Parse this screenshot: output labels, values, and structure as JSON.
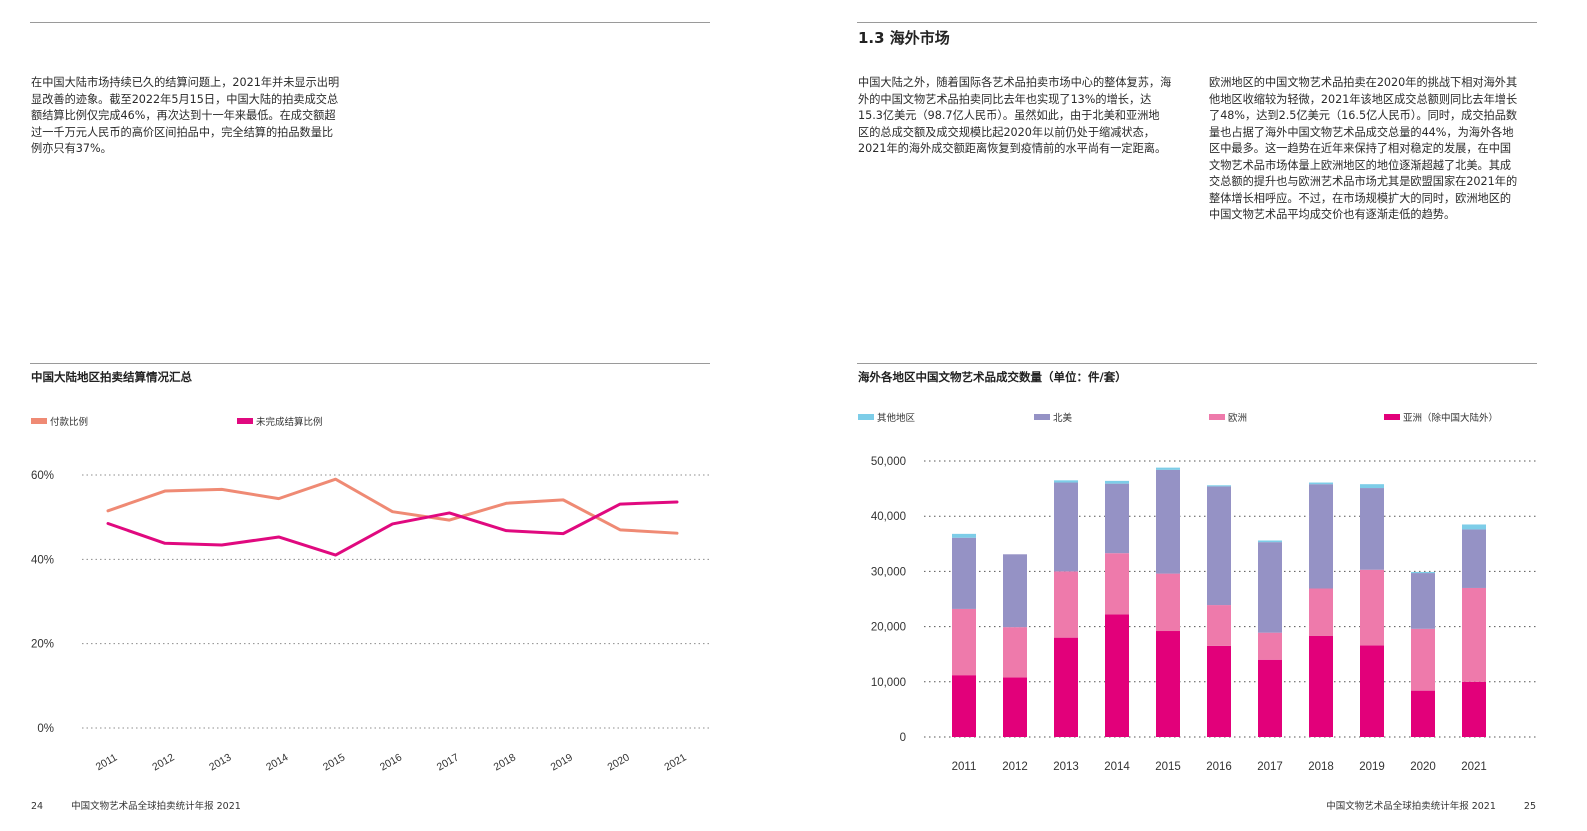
{
  "left_page": {
    "intro_lines": [
      "在中国大陆市场持续已久的结算问题上，2021年并未显示出明",
      "显改善的迹象。截至2022年5月15日，中国大陆的拍卖成交总",
      "额结算比例仅完成46%，再次达到十一年来最低。在成交额超",
      "过一千万元人民币的高价区间拍品中，完全结算的拍品数量比",
      "例亦只有37%。"
    ],
    "page_number": "24",
    "footer_text": "中国文物艺术品全球拍卖统计年报 2021"
  },
  "right_page": {
    "section_title": "1.3 海外市场",
    "col1_lines": [
      "中国大陆之外，随着国际各艺术品拍卖市场中心的整体复苏，海",
      "外的中国文物艺术品拍卖同比去年也实现了13%的增长，达",
      "15.3亿美元（98.7亿人民币）。虽然如此，由于北美和亚洲地",
      "区的总成交额及成交规模比起2020年以前仍处于缩减状态，",
      "2021年的海外成交额距离恢复到疫情前的水平尚有一定距离。"
    ],
    "col2_lines": [
      "欧洲地区的中国文物艺术品拍卖在2020年的挑战下相对海外其",
      "他地区收缩较为轻微，2021年该地区成交总额则同比去年增长",
      "了48%，达到2.5亿美元（16.5亿人民币）。同时，成交拍品数",
      "量也占据了海外中国文物艺术品成交总量的44%，为海外各地",
      "区中最多。这一趋势在近年来保持了相对稳定的发展，在中国",
      "文物艺术品市场体量上欧洲地区的地位逐渐超越了北美。其成",
      "交总额的提升也与欧洲艺术品市场尤其是欧盟国家在2021年的",
      "整体增长相呼应。不过，在市场规模扩大的同时，欧洲地区的",
      "中国文物艺术品平均成交价也有逐渐走低的趋势。"
    ],
    "page_number": "25",
    "footer_text": "中国文物艺术品全球拍卖统计年报 2021"
  },
  "chart_data": [
    {
      "type": "line",
      "title": "中国大陆地区拍卖结算情况汇总",
      "categories": [
        "2011",
        "2012",
        "2013",
        "2014",
        "2015",
        "2016",
        "2017",
        "2018",
        "2019",
        "2020",
        "2021"
      ],
      "series": [
        {
          "name": "付款比例",
          "color": "#ef8a74",
          "values": [
            51.5,
            56.2,
            56.6,
            54.4,
            59.0,
            51.3,
            49.3,
            53.3,
            54.1,
            47.0,
            46.2
          ]
        },
        {
          "name": "未完成结算比例",
          "color": "#e0097f",
          "values": [
            48.5,
            43.8,
            43.4,
            45.3,
            41.0,
            48.4,
            51.0,
            46.8,
            46.1,
            53.1,
            53.6
          ]
        }
      ],
      "yticks": [
        "0%",
        "20%",
        "40%",
        "60%"
      ],
      "ylim": [
        0,
        60
      ],
      "grid": "dotted",
      "legend": "top-left"
    },
    {
      "type": "bar",
      "stacked": true,
      "title": "海外各地区中国文物艺术品成交数量（单位：件/套）",
      "categories": [
        "2011",
        "2012",
        "2013",
        "2014",
        "2015",
        "2016",
        "2017",
        "2018",
        "2019",
        "2020",
        "2021"
      ],
      "series": [
        {
          "name": "亚洲（除中国大陆外）",
          "color": "#e2007a",
          "values": [
            11200,
            10800,
            18000,
            22200,
            19200,
            16500,
            14000,
            18300,
            16600,
            8400,
            10000
          ]
        },
        {
          "name": "欧洲",
          "color": "#ee7aab",
          "values": [
            12000,
            9100,
            12000,
            11100,
            10400,
            7400,
            4900,
            8600,
            13700,
            11200,
            17000
          ]
        },
        {
          "name": "北美",
          "color": "#9592c5",
          "values": [
            12900,
            13200,
            16100,
            12600,
            18800,
            21500,
            16400,
            18900,
            14800,
            10100,
            10600
          ]
        },
        {
          "name": "其他地区",
          "color": "#7dcde8",
          "values": [
            700,
            0,
            400,
            500,
            400,
            200,
            300,
            300,
            700,
            200,
            900
          ]
        }
      ],
      "yticks": [
        "0",
        "10,000",
        "20,000",
        "30,000",
        "40,000",
        "50,000"
      ],
      "ylim": [
        0,
        50000
      ],
      "grid": "dotted",
      "legend": "top"
    }
  ]
}
